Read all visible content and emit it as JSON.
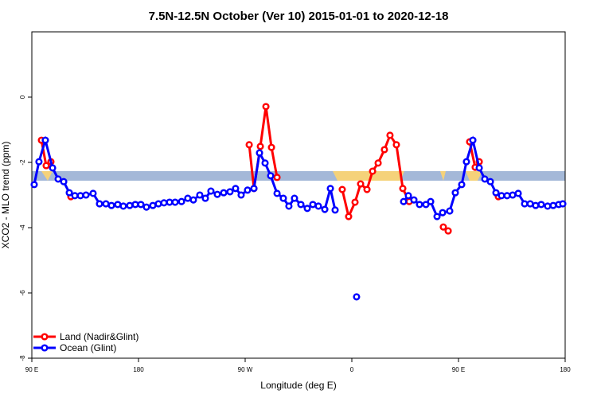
{
  "chart_data": {
    "type": "line",
    "title": "7.5N-12.5N October (Ver 10)   2015-01-01 to 2020-12-18",
    "x_label": "Longitude (deg E)",
    "y_label": "XCO2 - MLO trend (ppm)",
    "xlim": [
      90,
      540
    ],
    "ylim": [
      -8,
      2
    ],
    "xticks": [
      {
        "value": 90,
        "label": "90 E"
      },
      {
        "value": 180,
        "label": "180"
      },
      {
        "value": 270,
        "label": "90 W"
      },
      {
        "value": 360,
        "label": "0"
      },
      {
        "value": 450,
        "label": "90 E"
      },
      {
        "value": 540,
        "label": "180"
      }
    ],
    "yticks": [
      -8,
      -6,
      -4,
      -2,
      0
    ],
    "legend": "bottom-left",
    "series": [
      {
        "name": "Land (Nadir&Glint)",
        "color": "#ff0000",
        "x": [
          98.1,
          102.1,
          106.1,
          108,
          122.9,
          200,
          273.4,
          277.4,
          282.8,
          287.5,
          292.2,
          296.9,
          320,
          351.9,
          357.3,
          362.7,
          367.4,
          372.8,
          377.5,
          382.2,
          387.5,
          392.2,
          397.6,
          403.0,
          408.4,
          420,
          437.2,
          441.3,
          450,
          459.4,
          464.1,
          467.5,
          475,
          483.6
        ],
        "values": [
          -1.32,
          -2.1,
          -1.98,
          null,
          -3.05,
          null,
          -1.46,
          -2.8,
          -1.51,
          -0.29,
          -1.54,
          -2.46,
          null,
          -2.83,
          -3.66,
          -3.22,
          -2.66,
          -2.83,
          -2.27,
          -2.02,
          -1.61,
          -1.17,
          -1.46,
          -2.8,
          -3.2,
          null,
          -3.98,
          -4.1,
          null,
          -1.37,
          -2.15,
          -1.98,
          null,
          -3.05
        ]
      },
      {
        "name": "Ocean (Glint)",
        "color": "#0000ff",
        "x": [
          92.0,
          96.0,
          101.4,
          107.5,
          112.2,
          116.9,
          121.6,
          126.3,
          131.0,
          135.7,
          141.7,
          147.1,
          152.5,
          157.2,
          162.5,
          167.2,
          172.6,
          177.3,
          182.0,
          186.7,
          192.1,
          196.8,
          201.5,
          206.2,
          210.9,
          216.3,
          221.6,
          226.3,
          231.7,
          236.4,
          241.1,
          246.5,
          251.9,
          257.2,
          261.9,
          266.6,
          272.0,
          277.4,
          282.1,
          286.8,
          291.5,
          296.9,
          302.2,
          306.9,
          311.6,
          317.0,
          322.4,
          327.1,
          331.8,
          337.2,
          341.9,
          345.9,
          355,
          364.0,
          385,
          403.7,
          407.7,
          412.4,
          417.1,
          422.5,
          426.5,
          431.9,
          436.6,
          442.6,
          447.3,
          452.7,
          456.7,
          462.1,
          467.5,
          472.2,
          476.9,
          481.6,
          486.3,
          491.0,
          495.7,
          500.4,
          505.8,
          510.5,
          515.1,
          519.8,
          525.2,
          529.9,
          534.6,
          538.0
        ],
        "values": [
          -2.68,
          -1.98,
          -1.32,
          -2.17,
          -2.51,
          -2.59,
          -2.93,
          -3.02,
          -3.02,
          -3.0,
          -2.95,
          -3.27,
          -3.27,
          -3.32,
          -3.29,
          -3.34,
          -3.32,
          -3.29,
          -3.29,
          -3.37,
          -3.32,
          -3.27,
          -3.24,
          -3.22,
          -3.22,
          -3.2,
          -3.1,
          -3.15,
          -3.0,
          -3.1,
          -2.88,
          -2.98,
          -2.93,
          -2.9,
          -2.8,
          -3.0,
          -2.85,
          -2.8,
          -1.71,
          -2.02,
          -2.41,
          -2.95,
          -3.1,
          -3.34,
          -3.1,
          -3.29,
          -3.41,
          -3.29,
          -3.34,
          -3.44,
          -2.8,
          -3.46,
          null,
          -6.12,
          null,
          -3.2,
          -3.02,
          -3.15,
          -3.29,
          -3.29,
          -3.2,
          -3.66,
          -3.54,
          -3.49,
          -2.93,
          -2.68,
          -1.98,
          -1.32,
          -2.17,
          -2.51,
          -2.59,
          -2.93,
          -3.02,
          -3.02,
          -3.0,
          -2.95,
          -3.27,
          -3.27,
          -3.32,
          -3.29,
          -3.34,
          -3.32,
          -3.29,
          -3.27
        ]
      }
    ]
  }
}
